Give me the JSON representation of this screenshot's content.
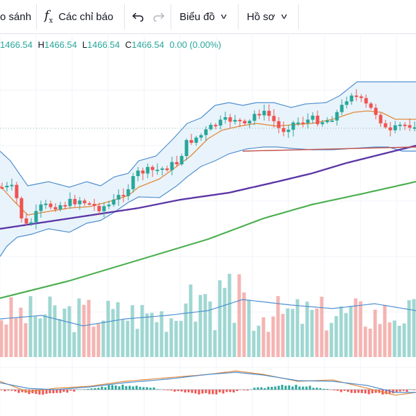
{
  "toolbar": {
    "compare_label": "o sánh",
    "indicators_icon": "function-fx-icon",
    "indicators_label": "Các chỉ báo",
    "undo_icon": "undo-icon",
    "redo_icon": "redo-icon",
    "chart_menu_label": "Biểu đồ",
    "profile_menu_label": "Hồ sơ",
    "dropdown_icon": "chevron-down-icon"
  },
  "legend": {
    "open_value": "1466.54",
    "high_label": "H",
    "high_value": "1466.54",
    "low_label": "L",
    "low_value": "1466.54",
    "close_label": "C",
    "close_value": "1466.54",
    "change": "0.00 (0.00%)"
  },
  "colors": {
    "up": "#26a69a",
    "down": "#ef5350",
    "bollinger_band": "#4e8fcf",
    "bollinger_fill": "#e9f3fb",
    "ma_fast": "#e08a3c",
    "ma_slow": "#5b36a6",
    "ma_long": "#4caf50",
    "trendline": "#c0504d",
    "volume_up": "#9fd7d2",
    "volume_down": "#f4b4b2",
    "macd_line": "#e08a3c",
    "signal_line": "#4e8fcf"
  }
}
